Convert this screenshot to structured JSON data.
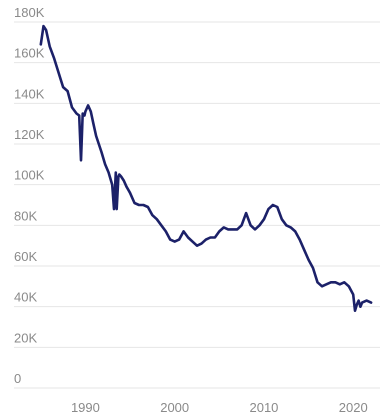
{
  "chart_data": {
    "type": "line",
    "title": "",
    "xlabel": "",
    "ylabel": "",
    "xlim": [
      1982,
      2023
    ],
    "ylim": [
      0,
      180000
    ],
    "grid": true,
    "legend": "none",
    "line_color": "#1c2169",
    "y_ticks": [
      {
        "value": 0,
        "label": "0"
      },
      {
        "value": 20000,
        "label": "20K"
      },
      {
        "value": 40000,
        "label": "40K"
      },
      {
        "value": 60000,
        "label": "60K"
      },
      {
        "value": 80000,
        "label": "80K"
      },
      {
        "value": 100000,
        "label": "100K"
      },
      {
        "value": 120000,
        "label": "120K"
      },
      {
        "value": 140000,
        "label": "140K"
      },
      {
        "value": 160000,
        "label": "160K"
      },
      {
        "value": 180000,
        "label": "180K"
      }
    ],
    "x_ticks": [
      {
        "value": 1990,
        "label": "1990"
      },
      {
        "value": 2000,
        "label": "2000"
      },
      {
        "value": 2010,
        "label": "2010"
      },
      {
        "value": 2020,
        "label": "2020"
      }
    ],
    "series": [
      {
        "x": [
          1985.0,
          1985.3,
          1985.6,
          1986.0,
          1986.5,
          1987.0,
          1987.5,
          1988.0,
          1988.5,
          1989.0,
          1989.3,
          1989.5,
          1989.7,
          1989.9,
          1990.0,
          1990.3,
          1990.6,
          1990.9,
          1991.2,
          1991.5,
          1991.8,
          1992.2,
          1992.6,
          1993.0,
          1993.2,
          1993.4,
          1993.5,
          1993.7,
          1993.8,
          1994.0,
          1994.3,
          1994.6,
          1995.0,
          1995.5,
          1996.0,
          1996.5,
          1997.0,
          1997.5,
          1998.0,
          1998.5,
          1999.0,
          1999.5,
          2000.0,
          2000.5,
          2001.0,
          2001.5,
          2002.0,
          2002.5,
          2003.0,
          2003.5,
          2004.0,
          2004.5,
          2005.0,
          2005.5,
          2006.0,
          2006.5,
          2007.0,
          2007.5,
          2008.0,
          2008.5,
          2009.0,
          2009.5,
          2010.0,
          2010.5,
          2011.0,
          2011.5,
          2012.0,
          2012.5,
          2013.0,
          2013.5,
          2014.0,
          2014.5,
          2015.0,
          2015.5,
          2016.0,
          2016.5,
          2017.0,
          2017.5,
          2018.0,
          2018.5,
          2019.0,
          2019.5,
          2020.0,
          2020.2,
          2020.4,
          2020.6,
          2020.8,
          2021.0,
          2021.5,
          2022.0
        ],
        "y": [
          169000,
          178000,
          176000,
          168000,
          162000,
          155000,
          148000,
          146000,
          138000,
          135000,
          134000,
          112000,
          135000,
          134000,
          136000,
          139000,
          136000,
          130000,
          124000,
          120000,
          116000,
          110000,
          106000,
          100000,
          88000,
          106000,
          88000,
          104000,
          105000,
          104000,
          102000,
          99000,
          96000,
          91000,
          90000,
          90000,
          89000,
          85000,
          83000,
          80000,
          77000,
          73000,
          72000,
          73000,
          77000,
          74000,
          72000,
          70000,
          71000,
          73000,
          74000,
          74000,
          77000,
          79000,
          78000,
          78000,
          78000,
          80000,
          86000,
          80000,
          78000,
          80000,
          83000,
          88000,
          90000,
          89000,
          83000,
          80000,
          79000,
          77000,
          73000,
          68000,
          63000,
          59000,
          52000,
          50000,
          51000,
          52000,
          52000,
          51000,
          52000,
          50000,
          46000,
          38000,
          41000,
          43000,
          40000,
          42000,
          43000,
          42000
        ]
      }
    ]
  }
}
